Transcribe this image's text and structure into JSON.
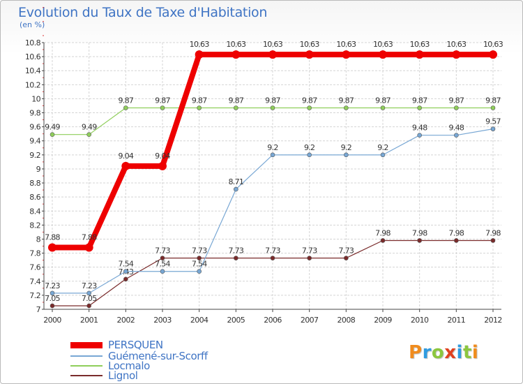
{
  "chart_data": {
    "type": "line",
    "title": "Evolution du Taux de Taxe d'Habitation",
    "subtitle": "(en %)",
    "xlabel": "",
    "ylabel": "",
    "categories": [
      "2000",
      "2001",
      "2002",
      "2003",
      "2004",
      "2005",
      "2006",
      "2007",
      "2008",
      "2009",
      "2010",
      "2011",
      "2012"
    ],
    "ylim": [
      7,
      10.8
    ],
    "yticks": [
      7,
      7.2,
      7.4,
      7.6,
      7.8,
      8,
      8.2,
      8.4,
      8.6,
      8.8,
      9,
      9.2,
      9.4,
      9.6,
      9.8,
      10,
      10.2,
      10.4,
      10.6,
      10.8
    ],
    "grid": true,
    "legend_position": "bottom-left",
    "series": [
      {
        "name": "PERSQUEN",
        "color": "#ee0000",
        "values": [
          7.88,
          7.88,
          9.04,
          9.04,
          10.63,
          10.63,
          10.63,
          10.63,
          10.63,
          10.63,
          10.63,
          10.63,
          10.63
        ],
        "labels": [
          "7.88",
          "7.88",
          "9.04",
          "9.04",
          "10.63",
          "10.63",
          "10.63",
          "10.63",
          "10.63",
          "10.63",
          "10.63",
          "10.63",
          "10.63"
        ]
      },
      {
        "name": "Guémené-sur-Scorff",
        "color": "#78a7d4",
        "values": [
          7.23,
          7.23,
          7.54,
          7.54,
          7.54,
          8.71,
          9.2,
          9.2,
          9.2,
          9.2,
          9.48,
          9.48,
          9.57
        ],
        "labels": [
          "7.23",
          "7.23",
          "7.54",
          "7.54",
          "7.54",
          "8.71",
          "9.2",
          "9.2",
          "9.2",
          "9.2",
          "9.48",
          "9.48",
          "9.57"
        ]
      },
      {
        "name": "Locmalo",
        "color": "#8fce5a",
        "values": [
          9.49,
          9.49,
          9.87,
          9.87,
          9.87,
          9.87,
          9.87,
          9.87,
          9.87,
          9.87,
          9.87,
          9.87,
          9.87
        ],
        "labels": [
          "9.49",
          "9.49",
          "9.87",
          "9.87",
          "9.87",
          "9.87",
          "9.87",
          "9.87",
          "9.87",
          "9.87",
          "9.87",
          "9.87",
          "9.87"
        ]
      },
      {
        "name": "Lignol",
        "color": "#7a2b2b",
        "values": [
          7.05,
          7.05,
          7.43,
          7.73,
          7.73,
          7.73,
          7.73,
          7.73,
          7.73,
          7.98,
          7.98,
          7.98,
          7.98
        ],
        "labels": [
          "7.05",
          "7.05",
          "7.43",
          "7.73",
          "7.73",
          "7.73",
          "7.73",
          "7.73",
          "7.73",
          "7.98",
          "7.98",
          "7.98",
          "7.98"
        ]
      }
    ]
  },
  "logo": {
    "letters": [
      "P",
      "r",
      "o",
      "x",
      "i",
      "t",
      "i"
    ],
    "colors": [
      "#f08c1e",
      "#2f9be0",
      "#8cc63f",
      "#e0411f",
      "#2f9be0",
      "#8cc63f",
      "#f08c1e"
    ]
  }
}
